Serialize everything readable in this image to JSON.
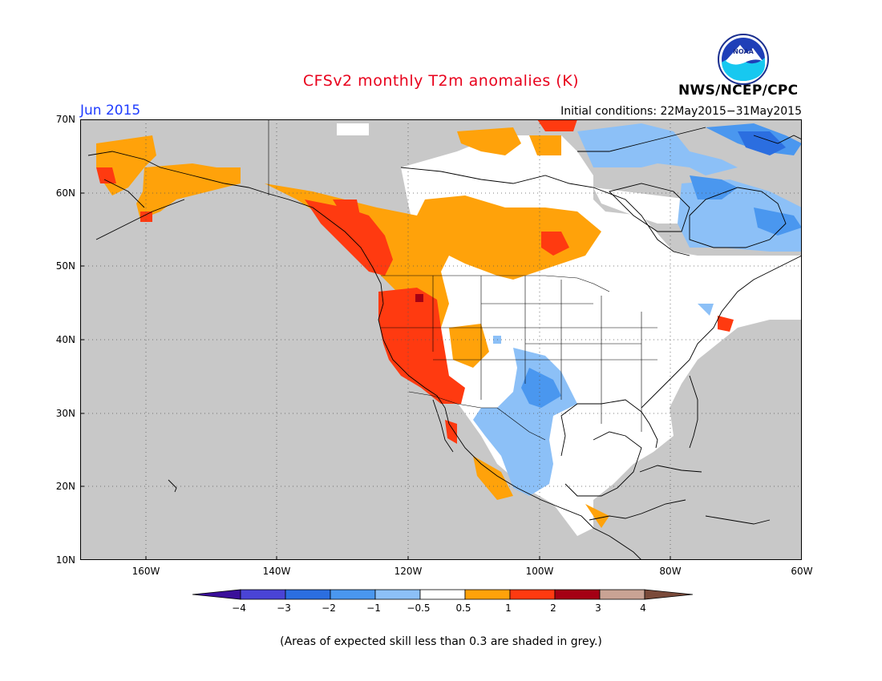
{
  "title": "CFSv2 monthly T2m anomalies (K)",
  "month_label": "Jun 2015",
  "initial_conditions": "Initial conditions: 22May2015−31May2015",
  "agency": "NWS/NCEP/CPC",
  "logo_text": "NOAA",
  "footnote": "(Areas of expected skill less than 0.3 are shaded in grey.)",
  "map": {
    "lon_range": [
      -170,
      -60
    ],
    "lat_range": [
      10,
      70
    ],
    "x_ticks": [
      "160W",
      "140W",
      "120W",
      "100W",
      "80W",
      "60W"
    ],
    "y_ticks": [
      "70N",
      "60N",
      "50N",
      "40N",
      "30N",
      "20N",
      "10N"
    ],
    "grid": "dotted",
    "low_skill_color": "#c8c8c8"
  },
  "colorbar": {
    "labels": [
      "−4",
      "−3",
      "−2",
      "−1",
      "−0.5",
      "0.5",
      "1",
      "2",
      "3",
      "4"
    ],
    "colors": [
      "#3a0f9a",
      "#4a44d6",
      "#2b6ee0",
      "#4a97ef",
      "#8cc0f7",
      "#ffffff",
      "#ffa20a",
      "#ff3a10",
      "#a50014",
      "#c9a394",
      "#7a4a3a"
    ]
  }
}
